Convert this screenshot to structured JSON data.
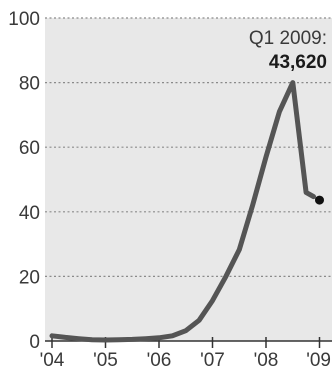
{
  "chart_data": {
    "type": "line",
    "title": "",
    "xlabel": "",
    "ylabel": "",
    "x_tick_labels": [
      "'04",
      "'05",
      "'06",
      "'07",
      "'08",
      "'09"
    ],
    "y_tick_labels": [
      "0",
      "20",
      "40",
      "60",
      "80",
      "100"
    ],
    "ylim": [
      0,
      100
    ],
    "xlim": [
      2004.0,
      2009.25
    ],
    "grid": true,
    "series": [
      {
        "x": [
          2004.0,
          2004.25,
          2004.5,
          2004.75,
          2005.0,
          2005.25,
          2005.5,
          2005.75,
          2006.0,
          2006.25,
          2006.5,
          2006.75,
          2007.0,
          2007.25,
          2007.5,
          2007.75,
          2008.0,
          2008.25,
          2008.5,
          2008.75,
          2009.0
        ],
        "values": [
          1.6,
          1.1,
          0.7,
          0.4,
          0.3,
          0.4,
          0.5,
          0.7,
          1.0,
          1.6,
          3.2,
          6.4,
          12.5,
          20.0,
          28.3,
          42.0,
          57.0,
          71.0,
          80.0,
          46.0,
          43.62
        ],
        "color": "#555555"
      }
    ],
    "annotation": {
      "label": "Q1 2009:",
      "value": "43,620"
    },
    "colors": {
      "plot_background": "#e8e8e8",
      "grid": "#8a8a8a",
      "line": "#555555",
      "marker": "#111111",
      "axis": "#333333"
    }
  }
}
